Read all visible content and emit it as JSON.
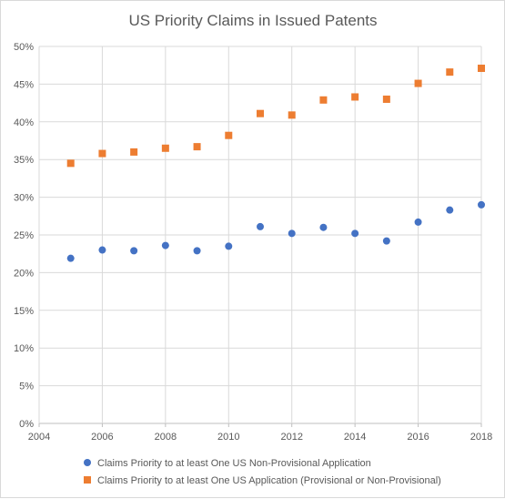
{
  "chart_data": {
    "type": "scatter",
    "title": "US Priority Claims in Issued Patents",
    "xlabel": "",
    "ylabel": "",
    "xlim": [
      2004,
      2018
    ],
    "ylim": [
      0,
      50
    ],
    "x_ticks": [
      "2004",
      "2006",
      "2008",
      "2010",
      "2012",
      "2014",
      "2016",
      "2018"
    ],
    "y_ticks": [
      "0%",
      "5%",
      "10%",
      "15%",
      "20%",
      "25%",
      "30%",
      "35%",
      "40%",
      "45%",
      "50%"
    ],
    "grid": true,
    "legend_position": "bottom",
    "x": [
      2005,
      2006,
      2007,
      2008,
      2009,
      2010,
      2011,
      2012,
      2013,
      2014,
      2015,
      2016,
      2017,
      2018
    ],
    "series": [
      {
        "name": "Claims Priority to at least One US Non-Provisional Application",
        "color": "#4472c4",
        "marker": "circle",
        "values": [
          21.9,
          23.0,
          22.9,
          23.6,
          22.9,
          23.5,
          26.1,
          25.2,
          26.0,
          25.2,
          24.2,
          26.7,
          28.3,
          29.0
        ]
      },
      {
        "name": "Claims Priority to at least One US Application (Provisional or Non-Provisional)",
        "color": "#ed7d31",
        "marker": "square",
        "values": [
          34.5,
          35.8,
          36.0,
          36.5,
          36.7,
          38.2,
          41.1,
          40.9,
          42.9,
          43.3,
          43.0,
          45.1,
          46.6,
          47.1
        ]
      }
    ]
  }
}
